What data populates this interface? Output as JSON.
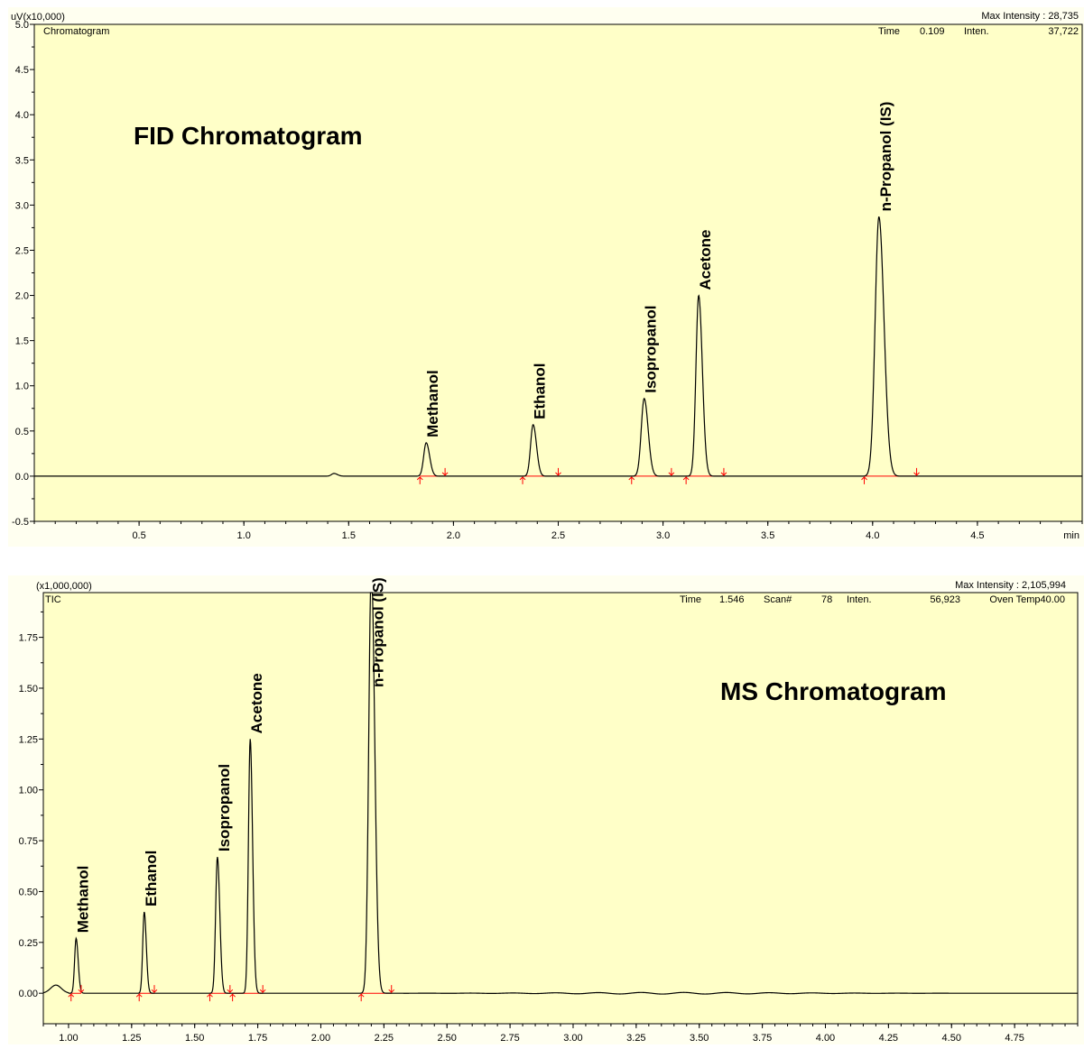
{
  "colors": {
    "plot_bg": "#ffffc8",
    "trace": "#000000",
    "baseline": "#ff0000",
    "marker": "#ff0000",
    "axis": "#000000"
  },
  "chart_data": [
    {
      "type": "line",
      "panel_name": "fid",
      "title": "FID Chromatogram",
      "trace_name": "Chromatogram",
      "yunit": "uV(x10,000)",
      "xunit": "min",
      "max_intensity": "Max Intensity : 28,735",
      "cursor": {
        "time_label": "Time",
        "time_value": "0.109",
        "inten_label": "Inten.",
        "inten_value": "37,722"
      },
      "xlim": [
        0,
        5.0
      ],
      "ylim": [
        -0.5,
        5.0
      ],
      "xticks": [
        "0.5",
        "1.0",
        "1.5",
        "2.0",
        "2.5",
        "3.0",
        "3.5",
        "4.0",
        "4.5"
      ],
      "yticks": [
        "-0.5",
        "0.0",
        "0.5",
        "1.0",
        "1.5",
        "2.0",
        "2.5",
        "3.0",
        "3.5",
        "4.0",
        "4.5",
        "5.0"
      ],
      "baseline": 0.0,
      "small_bumps": [
        {
          "x": 1.43,
          "height": 0.03,
          "width": 0.012
        }
      ],
      "peaks": [
        {
          "name": "Methanol",
          "x": 1.87,
          "height": 0.37,
          "width": 0.012,
          "start": 1.84,
          "end": 1.96
        },
        {
          "name": "Ethanol",
          "x": 2.38,
          "height": 0.57,
          "width": 0.012,
          "start": 2.33,
          "end": 2.5
        },
        {
          "name": "Isopropanol",
          "x": 2.91,
          "height": 0.86,
          "width": 0.014,
          "start": 2.85,
          "end": 3.04
        },
        {
          "name": "Acetone",
          "x": 3.17,
          "height": 2.0,
          "width": 0.013,
          "start": 3.11,
          "end": 3.29
        },
        {
          "name": "n-Propanol (IS)",
          "x": 4.03,
          "height": 2.87,
          "width": 0.018,
          "start": 3.96,
          "end": 4.21
        }
      ]
    },
    {
      "type": "line",
      "panel_name": "ms",
      "title": "MS Chromatogram",
      "trace_name": "TIC",
      "yunit": "(x1,000,000)",
      "max_intensity": "Max Intensity : 2,105,994",
      "cursor": {
        "time_label": "Time",
        "time_value": "1.546",
        "scan_label": "Scan#",
        "scan_value": "78",
        "inten_label": "Inten.",
        "inten_value": "56,923",
        "oven_label": "Oven Temp40.00"
      },
      "xlim": [
        0.9,
        5.0
      ],
      "ylim": [
        -0.15,
        1.97
      ],
      "xticks": [
        "1.00",
        "1.25",
        "1.50",
        "1.75",
        "2.00",
        "2.25",
        "2.50",
        "2.75",
        "3.00",
        "3.25",
        "3.50",
        "3.75",
        "4.00",
        "4.25",
        "4.50",
        "4.75"
      ],
      "yticks": [
        "0.00",
        "0.25",
        "0.50",
        "0.75",
        "1.00",
        "1.25",
        "1.50",
        "1.75"
      ],
      "baseline": 0.0,
      "peaks": [
        {
          "name": "Methanol",
          "x": 1.03,
          "height": 0.27,
          "width": 0.006,
          "start": 1.01,
          "end": 1.05
        },
        {
          "name": "Ethanol",
          "x": 1.3,
          "height": 0.4,
          "width": 0.006,
          "start": 1.28,
          "end": 1.34
        },
        {
          "name": "Isopropanol",
          "x": 1.59,
          "height": 0.67,
          "width": 0.007,
          "start": 1.56,
          "end": 1.64
        },
        {
          "name": "Acetone",
          "x": 1.72,
          "height": 1.25,
          "width": 0.007,
          "start": 1.65,
          "end": 1.77
        },
        {
          "name": "n-Propanol (IS)",
          "x": 2.2,
          "height": 2.1,
          "width": 0.01,
          "start": 2.16,
          "end": 2.28
        }
      ]
    }
  ]
}
